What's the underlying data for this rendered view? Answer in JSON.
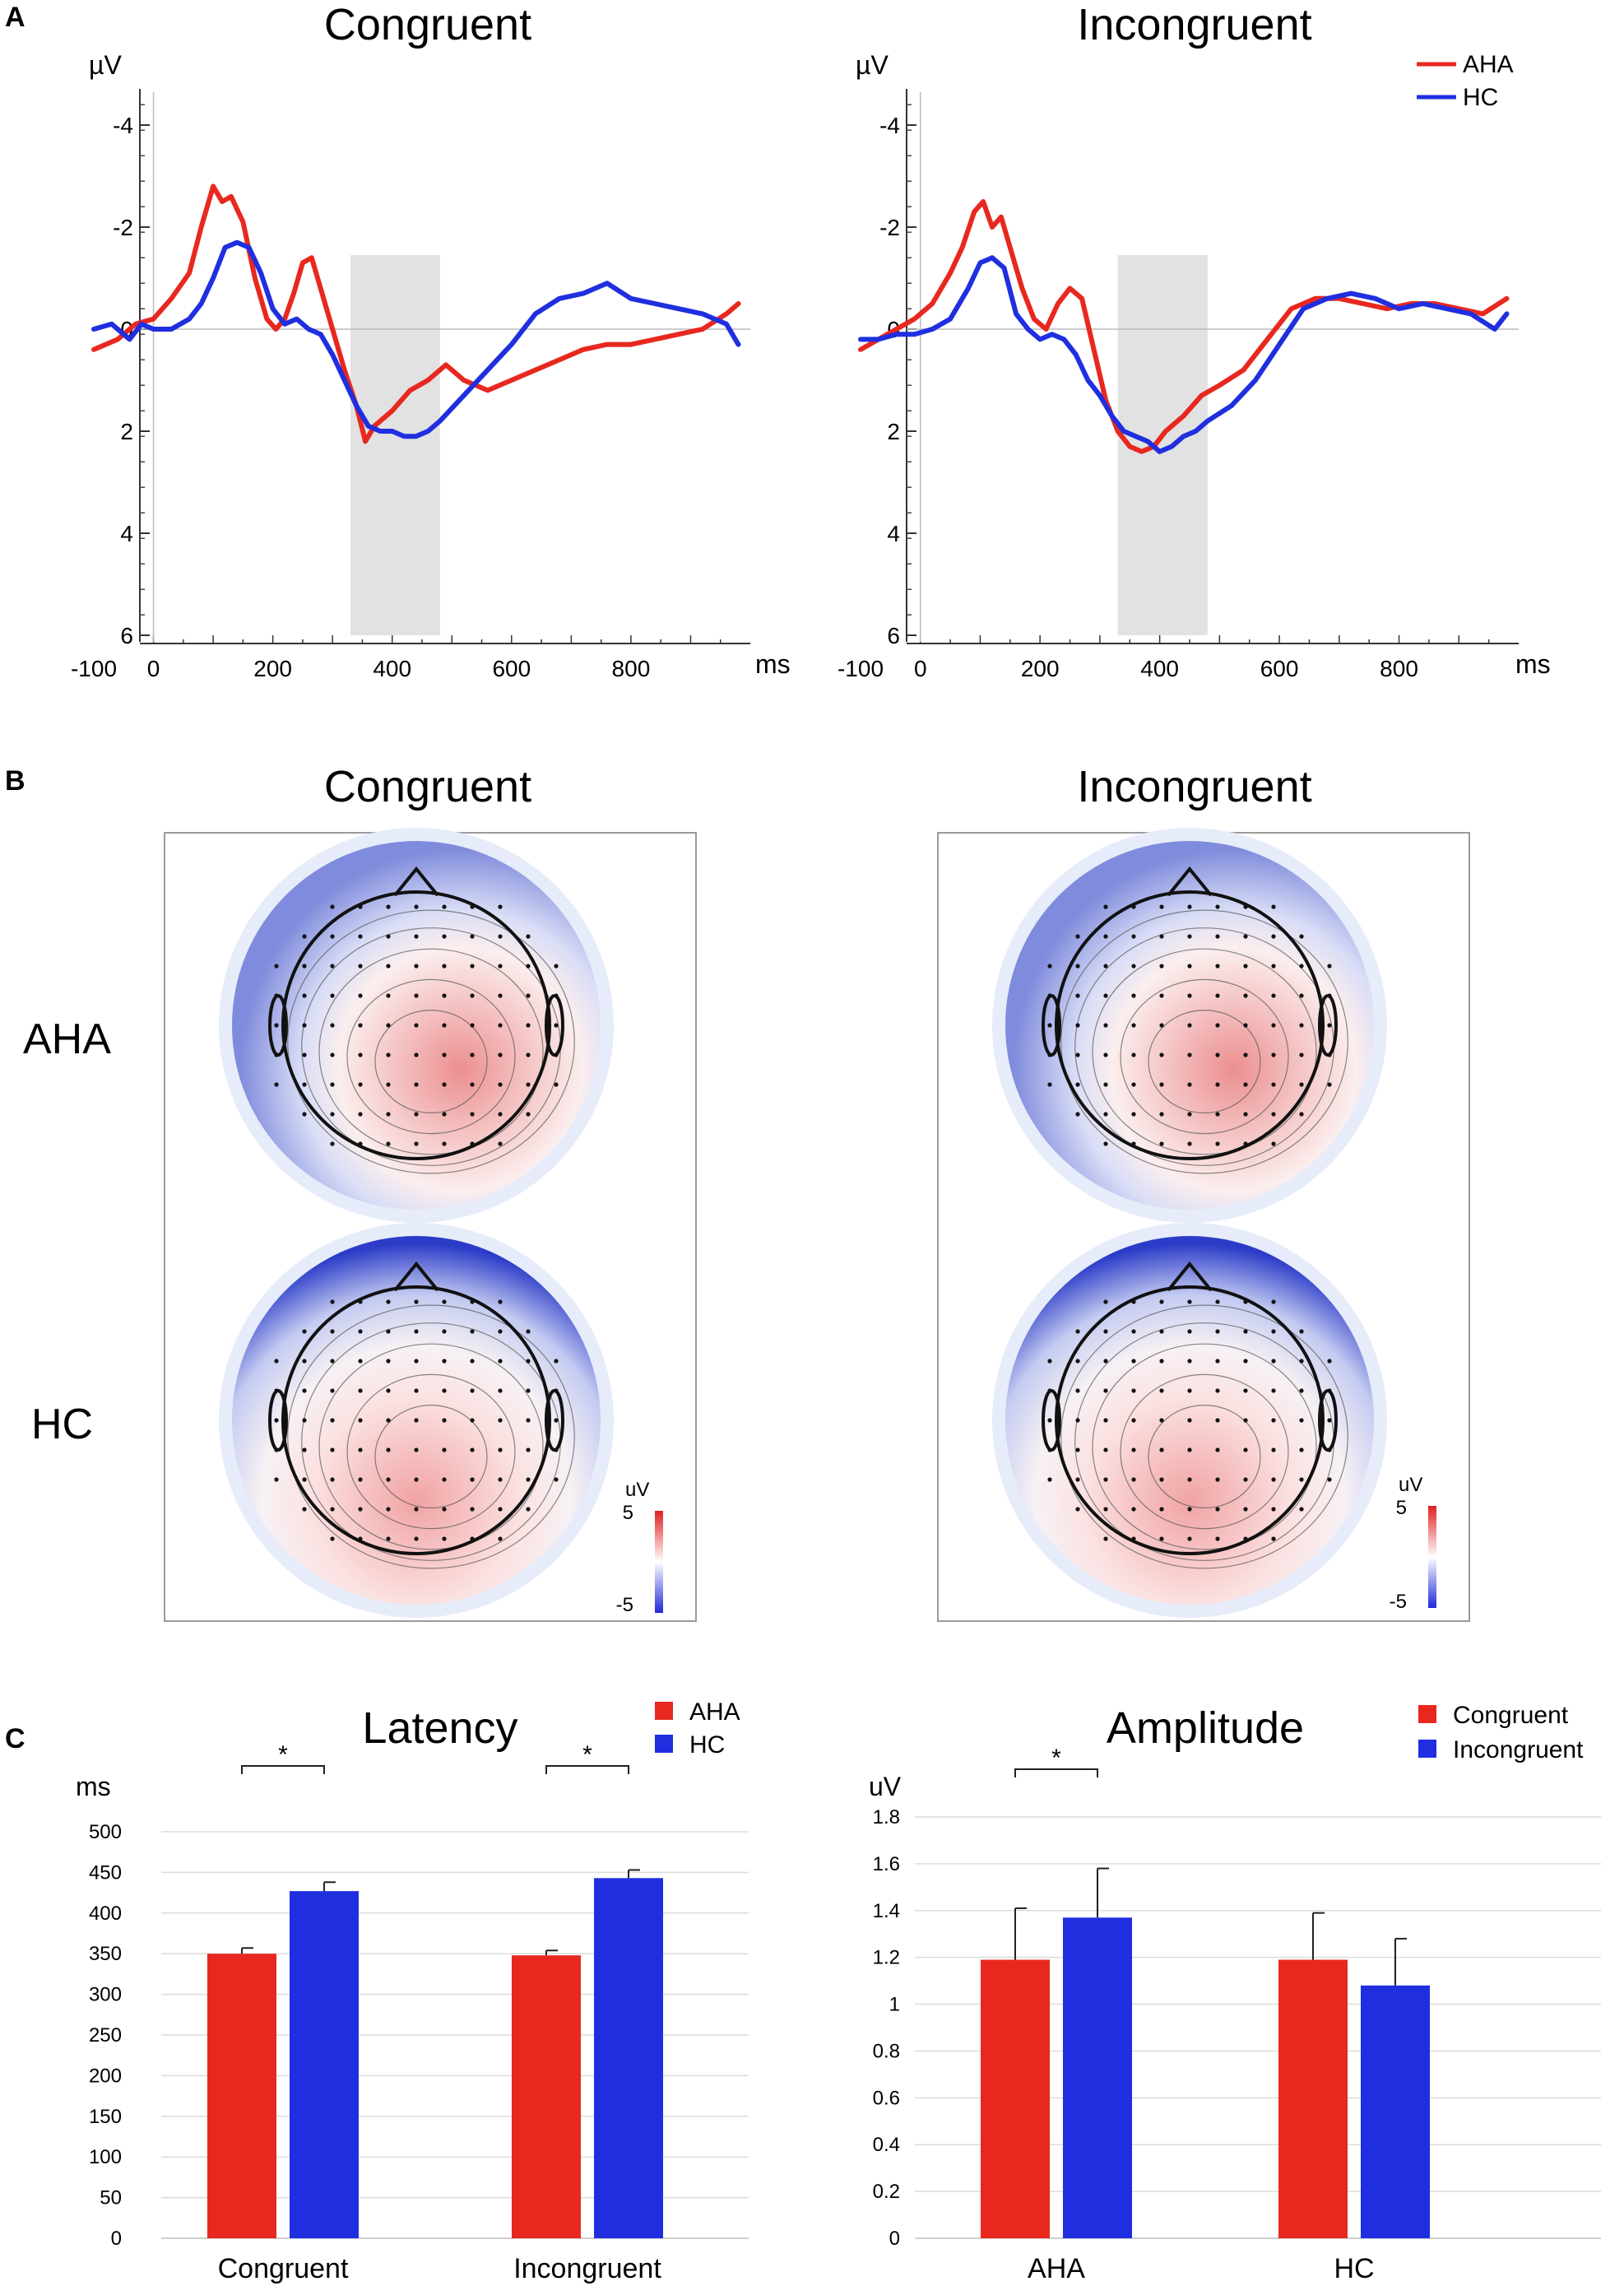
{
  "panel_labels": {
    "a": "A",
    "b": "B",
    "c": "C"
  },
  "legend_a": {
    "aha": "AHA",
    "hc": "HC"
  },
  "colors": {
    "aha": "#e8281f",
    "hc": "#1f2fe0",
    "shade": "#e2e2e2"
  },
  "topo": {
    "title_left": "Congruent",
    "title_right": "Incongruent",
    "row_labels": [
      "AHA",
      "HC"
    ],
    "colorbar_unit": "uV",
    "colorbar_max": "5",
    "colorbar_min": "-5"
  },
  "chart_data": [
    {
      "type": "line",
      "title": "Congruent",
      "ylabel": "µV",
      "xlabel": "ms",
      "y_inverted": true,
      "xlim": [
        -100,
        1000
      ],
      "ylim": [
        6,
        -4.5
      ],
      "xticks": [
        "-100",
        "0",
        "200",
        "400",
        "600",
        "800"
      ],
      "yticks": [
        "-4",
        "-2",
        "0",
        "2",
        "4",
        "6"
      ],
      "shaded_window_ms": [
        330,
        480
      ],
      "series": [
        {
          "name": "AHA",
          "x": [
            -100,
            -60,
            -30,
            0,
            30,
            60,
            80,
            100,
            115,
            130,
            150,
            170,
            190,
            205,
            220,
            235,
            250,
            265,
            280,
            300,
            320,
            340,
            355,
            370,
            400,
            430,
            460,
            490,
            520,
            560,
            600,
            640,
            680,
            720,
            760,
            800,
            840,
            880,
            920,
            960,
            980
          ],
          "y": [
            0.4,
            0.2,
            -0.1,
            -0.2,
            -0.6,
            -1.1,
            -2.0,
            -2.8,
            -2.5,
            -2.6,
            -2.1,
            -1.0,
            -0.2,
            0.0,
            -0.2,
            -0.7,
            -1.3,
            -1.4,
            -0.8,
            0.0,
            0.8,
            1.5,
            2.2,
            1.9,
            1.6,
            1.2,
            1.0,
            0.7,
            1.0,
            1.2,
            1.0,
            0.8,
            0.6,
            0.4,
            0.3,
            0.3,
            0.2,
            0.1,
            0.0,
            -0.3,
            -0.5
          ]
        },
        {
          "name": "HC",
          "x": [
            -100,
            -70,
            -40,
            -20,
            0,
            30,
            60,
            80,
            100,
            120,
            140,
            160,
            180,
            200,
            220,
            240,
            260,
            280,
            300,
            320,
            340,
            360,
            380,
            400,
            420,
            440,
            460,
            480,
            520,
            560,
            600,
            640,
            680,
            720,
            760,
            800,
            840,
            880,
            920,
            960,
            980
          ],
          "y": [
            0.0,
            -0.1,
            0.2,
            -0.1,
            0.0,
            0.0,
            -0.2,
            -0.5,
            -1.0,
            -1.6,
            -1.7,
            -1.6,
            -1.1,
            -0.4,
            -0.1,
            -0.2,
            0.0,
            0.1,
            0.5,
            1.0,
            1.5,
            1.9,
            2.0,
            2.0,
            2.1,
            2.1,
            2.0,
            1.8,
            1.3,
            0.8,
            0.3,
            -0.3,
            -0.6,
            -0.7,
            -0.9,
            -0.6,
            -0.5,
            -0.4,
            -0.3,
            -0.1,
            0.3
          ]
        }
      ]
    },
    {
      "type": "line",
      "title": "Incongruent",
      "ylabel": "µV",
      "xlabel": "ms",
      "y_inverted": true,
      "xlim": [
        -100,
        1000
      ],
      "ylim": [
        6,
        -4.5
      ],
      "xticks": [
        "-100",
        "0",
        "200",
        "400",
        "600",
        "800"
      ],
      "yticks": [
        "-4",
        "-2",
        "0",
        "2",
        "4",
        "6"
      ],
      "shaded_window_ms": [
        330,
        480
      ],
      "series": [
        {
          "name": "AHA",
          "x": [
            -100,
            -70,
            -40,
            -10,
            20,
            50,
            70,
            90,
            105,
            120,
            135,
            150,
            170,
            190,
            210,
            230,
            250,
            270,
            290,
            310,
            330,
            350,
            370,
            390,
            410,
            440,
            470,
            500,
            540,
            580,
            620,
            660,
            700,
            740,
            780,
            820,
            860,
            900,
            940,
            980
          ],
          "y": [
            0.4,
            0.2,
            0.0,
            -0.2,
            -0.5,
            -1.1,
            -1.6,
            -2.3,
            -2.5,
            -2.0,
            -2.2,
            -1.6,
            -0.8,
            -0.2,
            0.0,
            -0.5,
            -0.8,
            -0.6,
            0.4,
            1.4,
            2.0,
            2.3,
            2.4,
            2.3,
            2.0,
            1.7,
            1.3,
            1.1,
            0.8,
            0.2,
            -0.4,
            -0.6,
            -0.6,
            -0.5,
            -0.4,
            -0.5,
            -0.5,
            -0.4,
            -0.3,
            -0.6
          ]
        },
        {
          "name": "HC",
          "x": [
            -100,
            -70,
            -40,
            -10,
            20,
            50,
            80,
            100,
            120,
            140,
            160,
            180,
            200,
            220,
            240,
            260,
            280,
            300,
            320,
            340,
            360,
            380,
            400,
            420,
            440,
            460,
            480,
            520,
            560,
            600,
            640,
            680,
            720,
            760,
            800,
            840,
            880,
            920,
            960,
            980
          ],
          "y": [
            0.2,
            0.2,
            0.1,
            0.1,
            0.0,
            -0.2,
            -0.8,
            -1.3,
            -1.4,
            -1.2,
            -0.3,
            0.0,
            0.2,
            0.1,
            0.2,
            0.5,
            1.0,
            1.3,
            1.7,
            2.0,
            2.1,
            2.2,
            2.4,
            2.3,
            2.1,
            2.0,
            1.8,
            1.5,
            1.0,
            0.3,
            -0.4,
            -0.6,
            -0.7,
            -0.6,
            -0.4,
            -0.5,
            -0.4,
            -0.3,
            0.0,
            -0.3
          ]
        }
      ]
    },
    {
      "type": "bar",
      "title": "Latency",
      "ylabel": "ms",
      "ylim": [
        0,
        500
      ],
      "yticks": [
        "0",
        "50",
        "100",
        "150",
        "200",
        "250",
        "300",
        "350",
        "400",
        "450",
        "500"
      ],
      "categories": [
        "Congruent",
        "Incongruent"
      ],
      "series": [
        {
          "name": "AHA",
          "values": [
            350,
            348
          ],
          "errors": [
            7,
            6
          ]
        },
        {
          "name": "HC",
          "values": [
            427,
            443
          ],
          "errors": [
            11,
            10
          ]
        }
      ],
      "significance": [
        {
          "category": "Congruent",
          "label": "*"
        },
        {
          "category": "Incongruent",
          "label": "*"
        }
      ]
    },
    {
      "type": "bar",
      "title": "Amplitude",
      "ylabel": "uV",
      "ylim": [
        0,
        1.8
      ],
      "yticks": [
        "0",
        "0.2",
        "0.4",
        "0.6",
        "0.8",
        "1",
        "1.2",
        "1.4",
        "1.6",
        "1.8"
      ],
      "categories": [
        "AHA",
        "HC"
      ],
      "series": [
        {
          "name": "Congruent",
          "values": [
            1.19,
            1.19
          ],
          "errors": [
            0.22,
            0.2
          ]
        },
        {
          "name": "Incongruent",
          "values": [
            1.37,
            1.08
          ],
          "errors": [
            0.21,
            0.2
          ]
        }
      ],
      "significance": [
        {
          "category": "AHA",
          "label": "*"
        }
      ]
    }
  ]
}
